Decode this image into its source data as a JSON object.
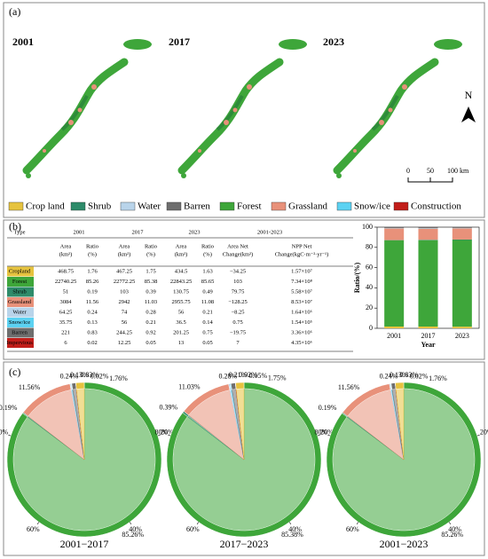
{
  "panel_a": {
    "label": "(a)",
    "years": [
      "2001",
      "2017",
      "2023"
    ],
    "north": "N",
    "scale": [
      "0",
      "50",
      "100 km"
    ]
  },
  "panel_b": {
    "label": "(b)"
  },
  "table": {
    "header": [
      "Type",
      "2001",
      "2017",
      "2023",
      "2001-2023"
    ],
    "subheader": [
      [
        "Area",
        "(km²)"
      ],
      [
        "Ratio",
        "(%)"
      ],
      [
        "Area",
        "(km²)"
      ],
      [
        "Ratio",
        "(%)"
      ],
      [
        "Area",
        "(km²)"
      ],
      [
        "Ratio",
        "(%)"
      ],
      [
        "Area Net",
        "Change(km²)"
      ],
      [
        "NPP Net",
        "Change(kgC·m⁻²·yr⁻¹)"
      ]
    ],
    "rows": [
      [
        "Cropland",
        "468.75",
        "1.76",
        "467.25",
        "1.75",
        "434.5",
        "1.63",
        "−34.25",
        "1.57×10⁷"
      ],
      [
        "Forest",
        "22740.25",
        "85.26",
        "22772.25",
        "85.38",
        "22843.25",
        "85.65",
        "103",
        "7.34×10⁸"
      ],
      [
        "Shrub",
        "51",
        "0.19",
        "103",
        "0.39",
        "130.75",
        "0.49",
        "79.75",
        "5.58×10⁷"
      ],
      [
        "Grassland",
        "3084",
        "11.56",
        "2942",
        "11.03",
        "2955.75",
        "11.08",
        "−128.25",
        "8.53×10⁷"
      ],
      [
        "Water",
        "64.25",
        "0.24",
        "74",
        "0.28",
        "56",
        "0.21",
        "−8.25",
        "1.64×10⁶"
      ],
      [
        "Snow/ice",
        "35.75",
        "0.13",
        "56",
        "0.21",
        "36.5",
        "0.14",
        "0.75",
        "1.54×10⁵"
      ],
      [
        "Barren",
        "221",
        "0.83",
        "244.25",
        "0.92",
        "201.25",
        "0.75",
        "−19.75",
        "3.36×10⁶"
      ],
      [
        "Impervious",
        "6",
        "0.02",
        "12.25",
        "0.05",
        "13",
        "0.05",
        "7",
        "4.35×10⁶"
      ]
    ]
  },
  "chart_data": {
    "type": "stacked_bar",
    "categories": [
      "2001",
      "2017",
      "2023"
    ],
    "xlabel": "Year",
    "ylabel": "Ratio/(%)",
    "ylim": [
      0,
      100
    ],
    "yticks": [
      0,
      20,
      40,
      60,
      80,
      100
    ],
    "series": [
      {
        "name": "Crop land",
        "color": "#e6c33f",
        "values": [
          1.76,
          1.75,
          1.63
        ]
      },
      {
        "name": "Forest",
        "color": "#3ea63a",
        "values": [
          85.26,
          85.38,
          85.65
        ]
      },
      {
        "name": "Shrub",
        "color": "#2e8b6a",
        "values": [
          0.19,
          0.39,
          0.49
        ]
      },
      {
        "name": "Grassland",
        "color": "#e8917a",
        "values": [
          11.56,
          11.03,
          11.08
        ]
      },
      {
        "name": "Water",
        "color": "#b9d4ea",
        "values": [
          0.24,
          0.28,
          0.21
        ]
      },
      {
        "name": "Snow/ice",
        "color": "#5cd2f2",
        "values": [
          0.13,
          0.21,
          0.14
        ]
      },
      {
        "name": "Barren",
        "color": "#6e6e6e",
        "values": [
          0.83,
          0.92,
          0.75
        ]
      },
      {
        "name": "Construction",
        "color": "#c21e1a",
        "values": [
          0.02,
          0.05,
          0.05
        ]
      }
    ]
  },
  "panel_c": {
    "label": "(c)",
    "ring_ticks": [
      {
        "value": 20,
        "label": "20%"
      },
      {
        "value": 40,
        "label": "40%"
      },
      {
        "value": 60,
        "label": "60%"
      },
      {
        "value": 80,
        "label": "80%"
      }
    ],
    "diagrams": [
      {
        "title": "2001−2017",
        "values": [
          1.76,
          85.26,
          0.19,
          11.56,
          0.24,
          0.13,
          0.83,
          0.02
        ],
        "value_labels": [
          "1.76%",
          "85.26%",
          "0.19%",
          "11.56%",
          "0.24%",
          "0.13%",
          "0.83%",
          "0.02%"
        ]
      },
      {
        "title": "2017−2023",
        "values": [
          1.75,
          85.38,
          0.39,
          11.03,
          0.28,
          0.21,
          0.92,
          0.05
        ],
        "value_labels": [
          "1.75%",
          "85.38%",
          "0.39%",
          "11.03%",
          "0.28%",
          "0.21%",
          "0.92%",
          "0.05%"
        ]
      },
      {
        "title": "2001−2023",
        "values": [
          1.76,
          85.26,
          0.19,
          11.56,
          0.24,
          0.13,
          0.83,
          0.02
        ],
        "value_labels": [
          "1.76%",
          "85.26%",
          "0.19%",
          "11.56%",
          "0.24%",
          "0.13%",
          "0.83%",
          "0.02%"
        ]
      }
    ]
  }
}
